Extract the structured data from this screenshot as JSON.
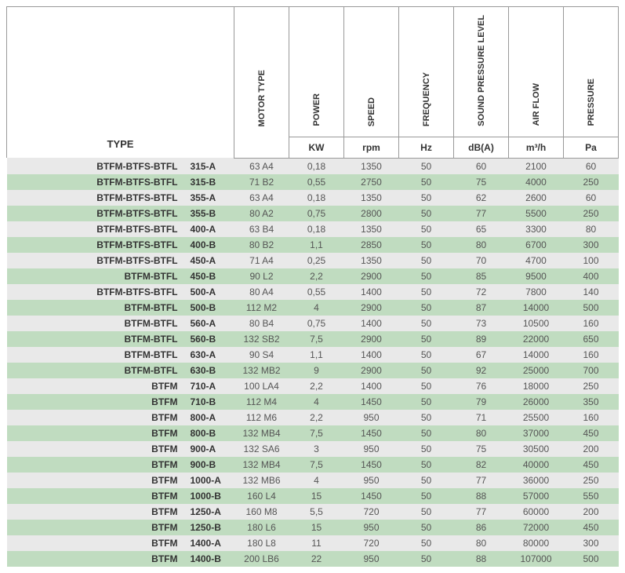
{
  "headers": {
    "type": "TYPE",
    "motor_type": "MOTOR TYPE",
    "power": "POWER",
    "speed": "SPEED",
    "frequency": "FREQUENCY",
    "sound": "SOUND PRESSURE LEVEL",
    "airflow": "AIR FLOW",
    "pressure": "PRESSURE"
  },
  "units": {
    "power": "KW",
    "speed": "rpm",
    "frequency": "Hz",
    "sound": "dB(A)",
    "airflow": "m³/h",
    "pressure": "Pa"
  },
  "colors": {
    "alt_gray": "#e9e9e9",
    "alt_green": "#c0dcc0",
    "border": "#999999",
    "text": "#555555",
    "text_bold": "#333333"
  },
  "rows": [
    {
      "series": "BTFM-BTFS-BTFL",
      "model": "315-A",
      "motor": "63 A4",
      "power": "0,18",
      "speed": "1350",
      "freq": "50",
      "sound": "60",
      "airflow": "2100",
      "pressure": "60"
    },
    {
      "series": "BTFM-BTFS-BTFL",
      "model": "315-B",
      "motor": "71 B2",
      "power": "0,55",
      "speed": "2750",
      "freq": "50",
      "sound": "75",
      "airflow": "4000",
      "pressure": "250"
    },
    {
      "series": "BTFM-BTFS-BTFL",
      "model": "355-A",
      "motor": "63 A4",
      "power": "0,18",
      "speed": "1350",
      "freq": "50",
      "sound": "62",
      "airflow": "2600",
      "pressure": "60"
    },
    {
      "series": "BTFM-BTFS-BTFL",
      "model": "355-B",
      "motor": "80 A2",
      "power": "0,75",
      "speed": "2800",
      "freq": "50",
      "sound": "77",
      "airflow": "5500",
      "pressure": "250"
    },
    {
      "series": "BTFM-BTFS-BTFL",
      "model": "400-A",
      "motor": "63 B4",
      "power": "0,18",
      "speed": "1350",
      "freq": "50",
      "sound": "65",
      "airflow": "3300",
      "pressure": "80"
    },
    {
      "series": "BTFM-BTFS-BTFL",
      "model": "400-B",
      "motor": "80 B2",
      "power": "1,1",
      "speed": "2850",
      "freq": "50",
      "sound": "80",
      "airflow": "6700",
      "pressure": "300"
    },
    {
      "series": "BTFM-BTFS-BTFL",
      "model": "450-A",
      "motor": "71 A4",
      "power": "0,25",
      "speed": "1350",
      "freq": "50",
      "sound": "70",
      "airflow": "4700",
      "pressure": "100"
    },
    {
      "series": "BTFM-BTFL",
      "model": "450-B",
      "motor": "90 L2",
      "power": "2,2",
      "speed": "2900",
      "freq": "50",
      "sound": "85",
      "airflow": "9500",
      "pressure": "400"
    },
    {
      "series": "BTFM-BTFS-BTFL",
      "model": "500-A",
      "motor": "80 A4",
      "power": "0,55",
      "speed": "1400",
      "freq": "50",
      "sound": "72",
      "airflow": "7800",
      "pressure": "140"
    },
    {
      "series": "BTFM-BTFL",
      "model": "500-B",
      "motor": "112 M2",
      "power": "4",
      "speed": "2900",
      "freq": "50",
      "sound": "87",
      "airflow": "14000",
      "pressure": "500"
    },
    {
      "series": "BTFM-BTFL",
      "model": "560-A",
      "motor": "80 B4",
      "power": "0,75",
      "speed": "1400",
      "freq": "50",
      "sound": "73",
      "airflow": "10500",
      "pressure": "160"
    },
    {
      "series": "BTFM-BTFL",
      "model": "560-B",
      "motor": "132 SB2",
      "power": "7,5",
      "speed": "2900",
      "freq": "50",
      "sound": "89",
      "airflow": "22000",
      "pressure": "650"
    },
    {
      "series": "BTFM-BTFL",
      "model": "630-A",
      "motor": "90 S4",
      "power": "1,1",
      "speed": "1400",
      "freq": "50",
      "sound": "67",
      "airflow": "14000",
      "pressure": "160"
    },
    {
      "series": "BTFM-BTFL",
      "model": "630-B",
      "motor": "132 MB2",
      "power": "9",
      "speed": "2900",
      "freq": "50",
      "sound": "92",
      "airflow": "25000",
      "pressure": "700"
    },
    {
      "series": "BTFM",
      "model": "710-A",
      "motor": "100 LA4",
      "power": "2,2",
      "speed": "1400",
      "freq": "50",
      "sound": "76",
      "airflow": "18000",
      "pressure": "250"
    },
    {
      "series": "BTFM",
      "model": "710-B",
      "motor": "112 M4",
      "power": "4",
      "speed": "1450",
      "freq": "50",
      "sound": "79",
      "airflow": "26000",
      "pressure": "350"
    },
    {
      "series": "BTFM",
      "model": "800-A",
      "motor": "112 M6",
      "power": "2,2",
      "speed": "950",
      "freq": "50",
      "sound": "71",
      "airflow": "25500",
      "pressure": "160"
    },
    {
      "series": "BTFM",
      "model": "800-B",
      "motor": "132 MB4",
      "power": "7,5",
      "speed": "1450",
      "freq": "50",
      "sound": "80",
      "airflow": "37000",
      "pressure": "450"
    },
    {
      "series": "BTFM",
      "model": "900-A",
      "motor": "132 SA6",
      "power": "3",
      "speed": "950",
      "freq": "50",
      "sound": "75",
      "airflow": "30500",
      "pressure": "200"
    },
    {
      "series": "BTFM",
      "model": "900-B",
      "motor": "132 MB4",
      "power": "7,5",
      "speed": "1450",
      "freq": "50",
      "sound": "82",
      "airflow": "40000",
      "pressure": "450"
    },
    {
      "series": "BTFM",
      "model": "1000-A",
      "motor": "132 MB6",
      "power": "4",
      "speed": "950",
      "freq": "50",
      "sound": "77",
      "airflow": "36000",
      "pressure": "250"
    },
    {
      "series": "BTFM",
      "model": "1000-B",
      "motor": "160 L4",
      "power": "15",
      "speed": "1450",
      "freq": "50",
      "sound": "88",
      "airflow": "57000",
      "pressure": "550"
    },
    {
      "series": "BTFM",
      "model": "1250-A",
      "motor": "160 M8",
      "power": "5,5",
      "speed": "720",
      "freq": "50",
      "sound": "77",
      "airflow": "60000",
      "pressure": "200"
    },
    {
      "series": "BTFM",
      "model": "1250-B",
      "motor": "180 L6",
      "power": "15",
      "speed": "950",
      "freq": "50",
      "sound": "86",
      "airflow": "72000",
      "pressure": "450"
    },
    {
      "series": "BTFM",
      "model": "1400-A",
      "motor": "180 L8",
      "power": "11",
      "speed": "720",
      "freq": "50",
      "sound": "80",
      "airflow": "80000",
      "pressure": "300"
    },
    {
      "series": "BTFM",
      "model": "1400-B",
      "motor": "200 LB6",
      "power": "22",
      "speed": "950",
      "freq": "50",
      "sound": "88",
      "airflow": "107000",
      "pressure": "500"
    }
  ]
}
